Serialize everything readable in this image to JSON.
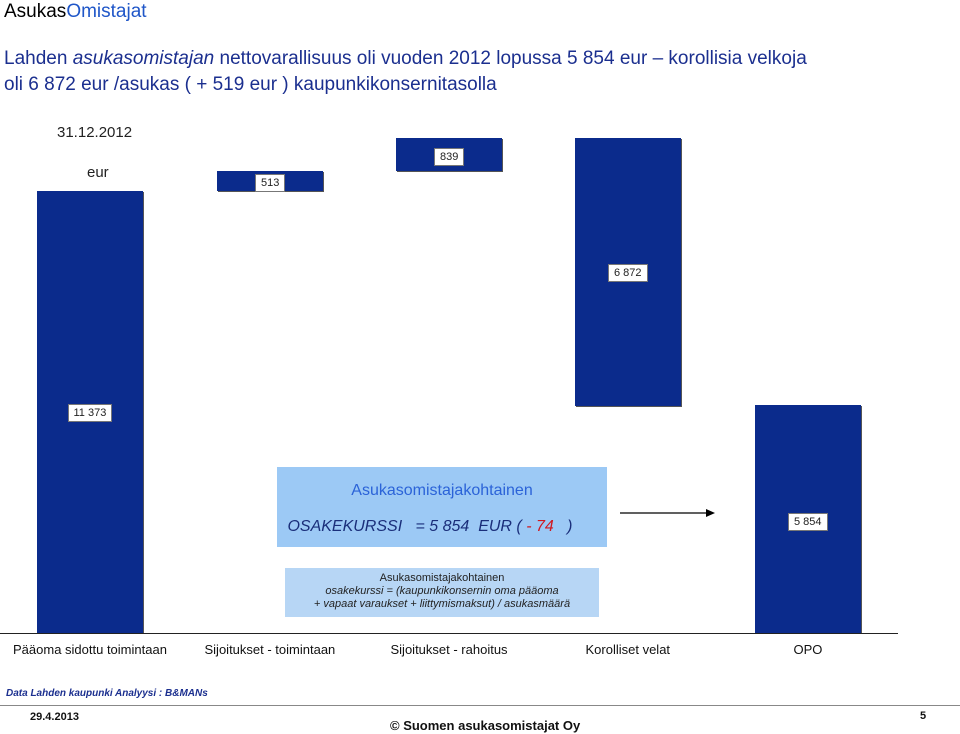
{
  "brand": {
    "part1": "Asukas",
    "part2": "Omistajat"
  },
  "title": {
    "seg1": "Lahden ",
    "seg2": "asukasomistajan",
    "seg3": " nettovarallisuus oli vuoden 2012 lopussa 5 854  eur",
    "seg4": " – korollisia velkoja",
    "line2": "oli 6 872 eur /asukas ( + 519 eur )  kaupunkikonsernitasolla"
  },
  "chart_data": {
    "type": "bar",
    "date_label": "31.12.2012",
    "unit_label": "eur",
    "categories": [
      "Pääoma sidottu toimintaan",
      "Sijoitukset - toimintaan",
      "Sijoitukset - rahoitus",
      "Korolliset velat",
      "OPO"
    ],
    "values": [
      11373,
      513,
      839,
      6872,
      5854
    ],
    "value_labels": [
      "11 373",
      "513",
      "839",
      "6 872",
      "5 854"
    ],
    "bar_color": "#0b2b8c"
  },
  "formula": {
    "title": "Asukasomistajakohtainen",
    "eq_prefix": " OSAKEKURSSI   = 5 854  EUR ( ",
    "eq_change": "- 74",
    "eq_suffix": "   )"
  },
  "explanation": {
    "line1": "Asukasomistajakohtainen",
    "line2": "osakekurssi = (kaupunkikonsernin oma pääoma",
    "line3": "+ vapaat varaukset + liittymismaksut) / asukasmäärä"
  },
  "footer": {
    "source": "Data Lahden kaupunki",
    "analysis": "Analyysi : B&MANs",
    "date": "29.4.2013",
    "copyright": "© Suomen asukasomistajat Oy",
    "page": "5"
  }
}
